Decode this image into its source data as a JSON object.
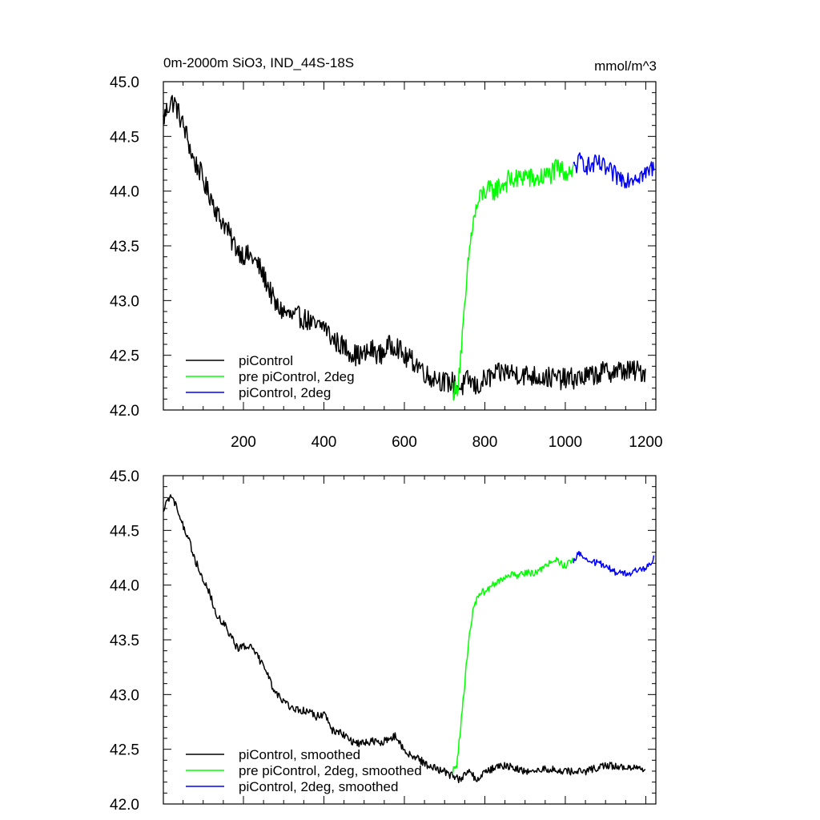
{
  "figure": {
    "title": "0m-2000m SiO3, IND_44S-18S",
    "units": "mmol/m^3"
  },
  "chart_data": [
    {
      "type": "line",
      "title": "0m-2000m SiO3, IND_44S-18S",
      "units": "mmol/m^3",
      "xlim": [
        1,
        1225
      ],
      "ylim": [
        42.0,
        45.0
      ],
      "x_ticks": [
        200,
        400,
        600,
        800,
        1000,
        1200
      ],
      "x_tick_labels": [
        "200",
        "400",
        "600",
        "800",
        "1000",
        "1200"
      ],
      "y_ticks": [
        42.0,
        42.5,
        43.0,
        43.5,
        44.0,
        44.5,
        45.0
      ],
      "y_tick_labels": [
        "42.0",
        "42.5",
        "43.0",
        "43.5",
        "44.0",
        "44.5",
        "45.0"
      ],
      "legend_position": "bottom-left",
      "series": [
        {
          "name": "piControl",
          "color": "#000000",
          "noise": 0.1,
          "x": [
            1,
            10,
            20,
            30,
            40,
            50,
            60,
            70,
            80,
            90,
            100,
            110,
            120,
            130,
            140,
            150,
            160,
            170,
            180,
            190,
            200,
            220,
            240,
            260,
            280,
            300,
            320,
            340,
            360,
            380,
            400,
            420,
            440,
            460,
            480,
            500,
            520,
            540,
            560,
            580,
            600,
            620,
            640,
            660,
            680,
            700,
            720,
            740,
            760,
            780,
            800,
            850,
            900,
            950,
            1000,
            1050,
            1100,
            1150,
            1200
          ],
          "y": [
            44.65,
            44.75,
            44.82,
            44.8,
            44.7,
            44.6,
            44.5,
            44.35,
            44.25,
            44.2,
            44.1,
            44.0,
            43.95,
            43.85,
            43.75,
            43.72,
            43.65,
            43.55,
            43.5,
            43.45,
            43.42,
            43.4,
            43.3,
            43.15,
            42.95,
            42.9,
            42.85,
            42.85,
            42.82,
            42.75,
            42.78,
            42.65,
            42.6,
            42.55,
            42.5,
            42.5,
            42.55,
            42.5,
            42.58,
            42.6,
            42.48,
            42.45,
            42.4,
            42.3,
            42.3,
            42.25,
            42.25,
            42.2,
            42.28,
            42.2,
            42.28,
            42.35,
            42.32,
            42.3,
            42.28,
            42.3,
            42.35,
            42.36,
            42.35
          ]
        },
        {
          "name": "pre piControl, 2deg",
          "color": "#00ff00",
          "noise": 0.1,
          "x": [
            720,
            730,
            740,
            750,
            760,
            770,
            780,
            790,
            800,
            820,
            840,
            860,
            880,
            900,
            920,
            940,
            960,
            980,
            1000,
            1010,
            1020
          ],
          "y": [
            42.2,
            42.15,
            42.5,
            42.9,
            43.4,
            43.7,
            43.85,
            43.95,
            44.0,
            44.0,
            44.05,
            44.1,
            44.1,
            44.15,
            44.1,
            44.12,
            44.15,
            44.2,
            44.18,
            44.2,
            44.2
          ]
        },
        {
          "name": "piControl, 2deg",
          "color": "#0000ff",
          "noise": 0.09,
          "x": [
            1020,
            1030,
            1040,
            1060,
            1080,
            1100,
            1120,
            1140,
            1160,
            1180,
            1200,
            1210,
            1220
          ],
          "y": [
            44.2,
            44.25,
            44.28,
            44.22,
            44.25,
            44.2,
            44.15,
            44.12,
            44.12,
            44.15,
            44.15,
            44.2,
            44.22
          ]
        }
      ]
    },
    {
      "type": "line",
      "xlim": [
        1,
        1225
      ],
      "ylim": [
        42.0,
        45.0
      ],
      "x_ticks": [
        200,
        400,
        600,
        800,
        1000,
        1200
      ],
      "y_ticks": [
        42.0,
        42.5,
        43.0,
        43.5,
        44.0,
        44.5,
        45.0
      ],
      "y_tick_labels": [
        "42.0",
        "42.5",
        "43.0",
        "43.5",
        "44.0",
        "44.5",
        "45.0"
      ],
      "legend_position": "bottom-left",
      "series": [
        {
          "name": "piControl, smoothed",
          "color": "#000000",
          "noise": 0.035,
          "x": [
            1,
            10,
            20,
            30,
            40,
            50,
            60,
            70,
            80,
            90,
            100,
            110,
            120,
            130,
            140,
            150,
            160,
            170,
            180,
            190,
            200,
            220,
            240,
            260,
            280,
            300,
            320,
            340,
            360,
            380,
            400,
            420,
            440,
            460,
            480,
            500,
            520,
            540,
            560,
            580,
            600,
            620,
            640,
            660,
            680,
            700,
            720,
            740,
            760,
            780,
            800,
            850,
            900,
            950,
            1000,
            1050,
            1100,
            1150,
            1200
          ],
          "y": [
            44.7,
            44.75,
            44.82,
            44.75,
            44.65,
            44.55,
            44.45,
            44.35,
            44.22,
            44.15,
            44.05,
            43.98,
            43.88,
            43.75,
            43.7,
            43.65,
            43.6,
            43.52,
            43.45,
            43.42,
            43.45,
            43.42,
            43.32,
            43.18,
            43.0,
            42.95,
            42.88,
            42.85,
            42.85,
            42.8,
            42.82,
            42.68,
            42.65,
            42.6,
            42.55,
            42.55,
            42.58,
            42.55,
            42.6,
            42.62,
            42.48,
            42.45,
            42.4,
            42.35,
            42.32,
            42.3,
            42.25,
            42.22,
            42.3,
            42.22,
            42.3,
            42.35,
            42.3,
            42.32,
            42.3,
            42.3,
            42.35,
            42.33,
            42.33
          ]
        },
        {
          "name": "pre piControl, 2deg, smoothed",
          "color": "#00ff00",
          "noise": 0.035,
          "x": [
            720,
            730,
            740,
            750,
            760,
            770,
            780,
            790,
            800,
            820,
            840,
            860,
            880,
            900,
            920,
            940,
            960,
            980,
            1000,
            1010,
            1020
          ],
          "y": [
            42.3,
            42.35,
            42.7,
            43.1,
            43.5,
            43.75,
            43.88,
            43.92,
            43.95,
            44.0,
            44.05,
            44.1,
            44.08,
            44.12,
            44.1,
            44.15,
            44.2,
            44.22,
            44.18,
            44.2,
            44.22
          ]
        },
        {
          "name": "piControl, 2deg, smoothed",
          "color": "#0000ff",
          "noise": 0.03,
          "x": [
            1020,
            1030,
            1040,
            1060,
            1080,
            1100,
            1120,
            1140,
            1160,
            1180,
            1200,
            1210,
            1220
          ],
          "y": [
            44.22,
            44.28,
            44.28,
            44.22,
            44.2,
            44.18,
            44.12,
            44.12,
            44.1,
            44.15,
            44.15,
            44.2,
            44.25
          ]
        }
      ]
    }
  ]
}
